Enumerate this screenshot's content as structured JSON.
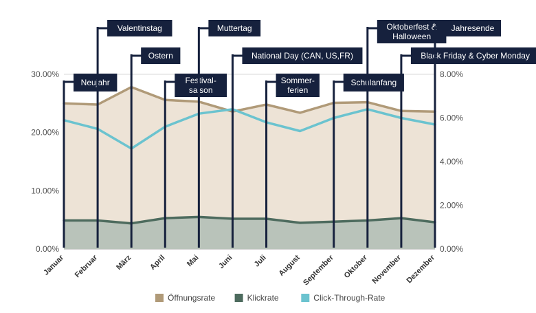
{
  "chart_data": {
    "type": "area",
    "categories": [
      "Januar",
      "Februar",
      "März",
      "April",
      "Mai",
      "Juni",
      "Juli",
      "August",
      "September",
      "Oktober",
      "November",
      "Dezember"
    ],
    "series": [
      {
        "name": "Öffnungsrate",
        "axis": "left",
        "style": "area",
        "color": "#b09a78",
        "fill": "#ede3d6",
        "values": [
          25.0,
          24.8,
          27.8,
          25.6,
          25.3,
          23.6,
          24.8,
          23.4,
          25.1,
          25.2,
          23.7,
          23.6
        ]
      },
      {
        "name": "Klickrate",
        "axis": "left",
        "style": "area",
        "color": "#4d6b5e",
        "fill": "#b9c3ba",
        "values": [
          4.9,
          4.9,
          4.4,
          5.3,
          5.5,
          5.2,
          5.2,
          4.5,
          4.7,
          4.9,
          5.3,
          4.6
        ]
      },
      {
        "name": "Click-Through-Rate",
        "axis": "right",
        "style": "line",
        "color": "#6bc3cf",
        "values": [
          5.9,
          5.5,
          4.6,
          5.6,
          6.2,
          6.4,
          5.8,
          5.4,
          6.0,
          6.4,
          6.0,
          5.7
        ]
      }
    ],
    "y_left": {
      "min": 0,
      "max": 30,
      "ticks": [
        0,
        10,
        20,
        30
      ],
      "tick_labels": [
        "0.00%",
        "10.00%",
        "20.00%",
        "30.00%"
      ]
    },
    "y_right": {
      "min": 0,
      "max": 8,
      "ticks": [
        0,
        2,
        4,
        6,
        8
      ],
      "tick_labels": [
        "0.00%",
        "2.00%",
        "4.00%",
        "6.00%",
        "8.00%"
      ]
    },
    "grid": true,
    "legend": "bottom",
    "annotations": [
      {
        "lines": [
          "Neujahr"
        ],
        "month": "Januar",
        "level": "low"
      },
      {
        "lines": [
          "Valentinstag"
        ],
        "month": "Februar",
        "level": "top"
      },
      {
        "lines": [
          "Ostern"
        ],
        "month": "März",
        "level": "mid"
      },
      {
        "lines": [
          "Festival-",
          "saison"
        ],
        "month": "April",
        "level": "low"
      },
      {
        "lines": [
          "Muttertag"
        ],
        "month": "Mai",
        "level": "top"
      },
      {
        "lines": [
          "National Day (CAN, US,FR)"
        ],
        "month": "Juni",
        "level": "mid"
      },
      {
        "lines": [
          "Sommer-",
          "ferien"
        ],
        "month": "Juli",
        "level": "low"
      },
      {
        "lines": [
          "Schulanfang"
        ],
        "month": "September",
        "level": "low"
      },
      {
        "lines": [
          "Oktoberfest &",
          "Halloween"
        ],
        "month": "Oktober",
        "level": "top"
      },
      {
        "lines": [
          "Black Friday & Cyber Monday"
        ],
        "month": "November",
        "level": "mid"
      },
      {
        "lines": [
          "Jahresende"
        ],
        "month": "Dezember",
        "level": "top"
      }
    ],
    "annotation_color": "#16213d"
  }
}
